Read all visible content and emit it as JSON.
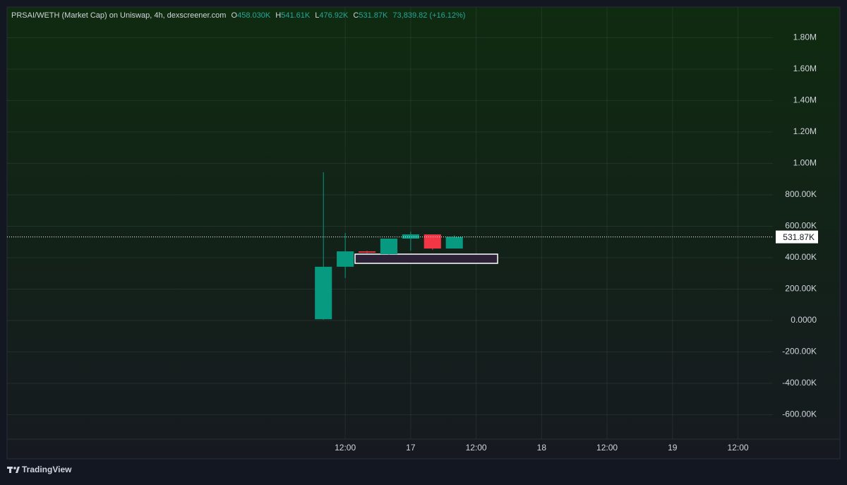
{
  "chart_data": {
    "type": "candlestick",
    "header": {
      "symbol": "PRSAI/WETH (Market Cap) on Uniswap, 4h, dexscreener.com",
      "open_key": "O",
      "open": "458.030K",
      "high_key": "H",
      "high": "541.61K",
      "low_key": "L",
      "low": "476.92K",
      "close_key": "C",
      "close": "531.87K",
      "change": "73,839.82 (+16.12%)"
    },
    "x": [
      0,
      1,
      2,
      3,
      4,
      5,
      6
    ],
    "open": [
      8000,
      342000,
      440000,
      422000,
      521000,
      548000,
      458030
    ],
    "high": [
      944000,
      557000,
      444000,
      521000,
      566000,
      548000,
      541610
    ],
    "low": [
      5000,
      270000,
      428000,
      420000,
      445000,
      450000,
      476920
    ],
    "close": [
      342000,
      440000,
      432000,
      521000,
      548000,
      458030,
      531870
    ],
    "up_color": "#089981",
    "down_color": "#f23645",
    "xlim": [
      -14.5,
      20.6
    ],
    "xticks": [
      {
        "value": 1,
        "label": "12:00"
      },
      {
        "value": 4,
        "label": "17"
      },
      {
        "value": 7,
        "label": "12:00"
      },
      {
        "value": 10,
        "label": "18"
      },
      {
        "value": 13,
        "label": "12:00"
      },
      {
        "value": 16,
        "label": "19"
      },
      {
        "value": 19,
        "label": "12:00"
      }
    ],
    "ylim": [
      -755000,
      1995000
    ],
    "yticks": [
      {
        "value": 1800000,
        "label": "1.80M"
      },
      {
        "value": 1600000,
        "label": "1.60M"
      },
      {
        "value": 1400000,
        "label": "1.40M"
      },
      {
        "value": 1200000,
        "label": "1.20M"
      },
      {
        "value": 1000000,
        "label": "1.00M"
      },
      {
        "value": 800000,
        "label": "800.00K"
      },
      {
        "value": 600000,
        "label": "600.00K"
      },
      {
        "value": 400000,
        "label": "400.00K"
      },
      {
        "value": 200000,
        "label": "200.00K"
      },
      {
        "value": 0,
        "label": "0.0000"
      },
      {
        "value": -200000,
        "label": "-200.00K"
      },
      {
        "value": -400000,
        "label": "-400.00K"
      },
      {
        "value": -600000,
        "label": "-600.00K"
      }
    ],
    "grid": true,
    "last_price": {
      "value": 531870,
      "label": "531.87K"
    },
    "branding": "TradingView"
  }
}
